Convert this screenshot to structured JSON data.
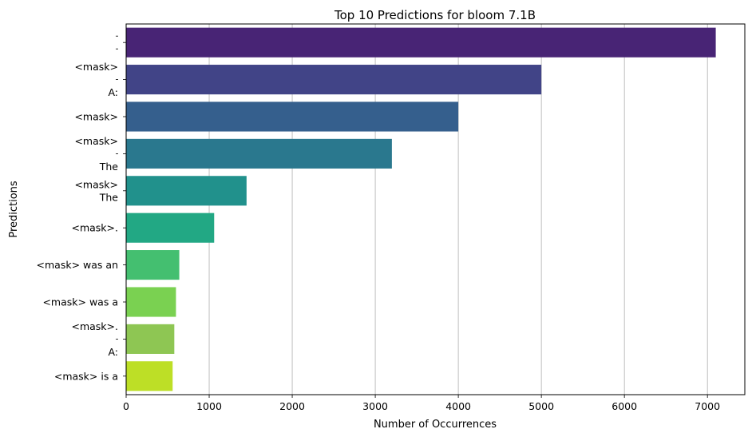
{
  "chart_data": {
    "type": "bar",
    "orientation": "horizontal",
    "title": "Top 10 Predictions for bloom 7.1B",
    "xlabel": "Number of Occurrences",
    "ylabel": "Predictions",
    "xlim": [
      0,
      7450
    ],
    "xticks": [
      0,
      1000,
      2000,
      3000,
      4000,
      5000,
      6000,
      7000
    ],
    "grid": "x",
    "categories": [
      [
        "",
        ""
      ],
      [
        "<mask>",
        "",
        "A:"
      ],
      [
        "<mask>"
      ],
      [
        "<mask>",
        "",
        "The"
      ],
      [
        "<mask>",
        "The"
      ],
      [
        "<mask>."
      ],
      [
        "<mask> was an"
      ],
      [
        "<mask> was a"
      ],
      [
        "<mask>.",
        "",
        "A:"
      ],
      [
        "<mask> is a"
      ]
    ],
    "values": [
      7100,
      5000,
      4000,
      3200,
      1450,
      1060,
      640,
      600,
      580,
      560
    ],
    "colors": [
      "#482475",
      "#414487",
      "#355f8d",
      "#2a788e",
      "#21918c",
      "#22a884",
      "#44bf70",
      "#7ad151",
      "#8ec653",
      "#bddf26"
    ]
  }
}
